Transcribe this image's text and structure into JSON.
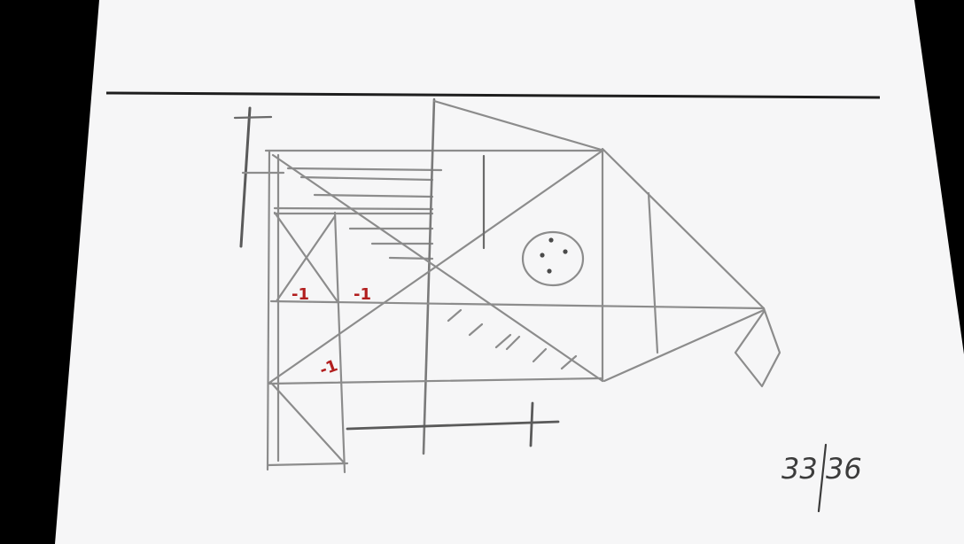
{
  "page_number": "33/36",
  "page_number_parts": {
    "current": "33",
    "total": "36"
  },
  "annotations": [
    "-1",
    "-1",
    "-1"
  ],
  "colors": {
    "paper": "#f6f6f7",
    "background": "#000000",
    "pencil": "#8c8c8c",
    "pencil_dark": "#4a4a4a",
    "ink_line": "#1e1e1e",
    "red_pencil": "#b21e1e",
    "page_number_ink": "#3c3c3c"
  }
}
